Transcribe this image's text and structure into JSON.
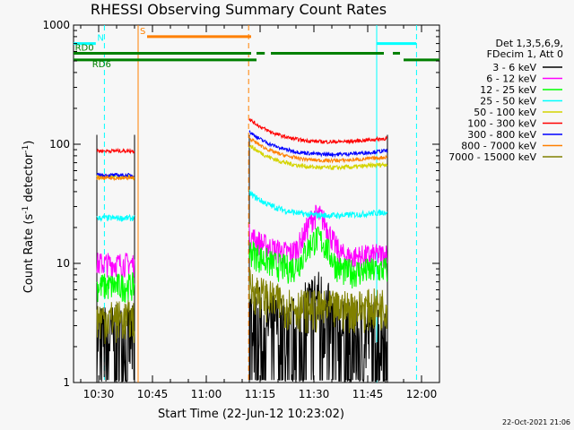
{
  "chart_data": {
    "type": "line",
    "title": "RHESSI Observing Summary Count Rates",
    "xlabel": "Start Time (22-Jun-12 10:23:02)",
    "ylabel_main": "Count Rate (s",
    "ylabel_sup1": "-1",
    "ylabel_mid": " detector",
    "ylabel_sup2": "-1",
    "ylabel_end": ")",
    "x_unit": "minutes after 10:23:02",
    "xlim": [
      0,
      102
    ],
    "ylim": [
      1,
      1000
    ],
    "y_scale": "log",
    "x_ticks": [
      {
        "label": "10:30",
        "value": 7
      },
      {
        "label": "10:45",
        "value": 22
      },
      {
        "label": "11:00",
        "value": 37
      },
      {
        "label": "11:15",
        "value": 52
      },
      {
        "label": "11:30",
        "value": 67
      },
      {
        "label": "11:45",
        "value": 82
      },
      {
        "label": "12:00",
        "value": 97
      }
    ],
    "y_ticks": [
      {
        "label": "1",
        "value": 1
      },
      {
        "label": "10",
        "value": 10
      },
      {
        "label": "100",
        "value": 100
      },
      {
        "label": "1000",
        "value": 1000
      }
    ],
    "legend": {
      "placement": "right",
      "header": [
        "Det 1,3,5,6,9,",
        "FDecim 1, Att 0"
      ]
    },
    "series": [
      {
        "name": "3 - 6 keV",
        "color": "#000000",
        "s1": 2.5,
        "s2": 2.8,
        "noise": 0.2
      },
      {
        "name": "6 - 12 keV",
        "color": "#ff00ff",
        "s1": 10,
        "s2": 12,
        "noise": 0.06
      },
      {
        "name": "12 - 25 keV",
        "color": "#00ff00",
        "s1": 6.5,
        "s2": 9,
        "noise": 0.07
      },
      {
        "name": "25 - 50 keV",
        "color": "#00ffff",
        "s1": 24,
        "s2": 27,
        "noise": 0.02
      },
      {
        "name": "50 - 100 keV",
        "color": "#d4d400",
        "s1": 53,
        "s2": 68,
        "noise": 0.015
      },
      {
        "name": "100 - 300 keV",
        "color": "#ff0000",
        "s1": 88,
        "s2": 112,
        "noise": 0.012
      },
      {
        "name": "300 - 800 keV",
        "color": "#0000ff",
        "s1": 55,
        "s2": 88,
        "noise": 0.012
      },
      {
        "name": "800 - 7000 keV",
        "color": "#ff8000",
        "s1": 52,
        "s2": 78,
        "noise": 0.012
      },
      {
        "name": "7000 - 15000 keV",
        "color": "#808000",
        "s1": 3.5,
        "s2": 4.5,
        "noise": 0.1
      }
    ],
    "segments": [
      {
        "start": 6.5,
        "end": 17.0
      },
      {
        "start": 49.0,
        "end": 87.5
      }
    ],
    "flags": [
      {
        "label": "N",
        "color": "#00ffff",
        "y": 700,
        "spans": [
          [
            0,
            6.2
          ],
          [
            84.5,
            95.5
          ]
        ]
      },
      {
        "label": "S",
        "color": "#ff8000",
        "y": 800,
        "spans": [
          [
            20.5,
            49.5
          ]
        ]
      },
      {
        "label": "RD0",
        "color": "#008000",
        "y": 580,
        "spans": [
          [
            0,
            49.5
          ],
          [
            51,
            53.3
          ],
          [
            55,
            86.5
          ],
          [
            89,
            91
          ]
        ]
      },
      {
        "label": "RD6",
        "color": "#008000",
        "y": 510,
        "spans": [
          [
            0,
            51
          ],
          [
            92,
            102
          ]
        ]
      }
    ],
    "markers": [
      {
        "color": "#00ffff",
        "x": 8.6,
        "dashed": true
      },
      {
        "color": "#ff8000",
        "x": 18.0,
        "dashed": false
      },
      {
        "color": "#ff8000",
        "x": 48.8,
        "dashed": true
      },
      {
        "color": "#00ffff",
        "x": 84.5,
        "dashed": false
      },
      {
        "color": "#00ffff",
        "x": 95.6,
        "dashed": true
      }
    ],
    "timestamp": "22-Oct-2021 21:06"
  }
}
